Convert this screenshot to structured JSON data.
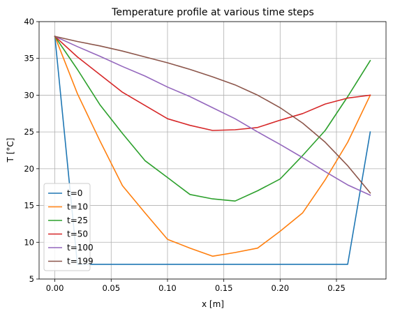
{
  "chart_data": {
    "type": "line",
    "title": "Temperature profile at various time steps",
    "xlabel": "x [m]",
    "ylabel": "T [°C]",
    "xlim": [
      -0.014,
      0.294
    ],
    "ylim": [
      5,
      40
    ],
    "xticks": [
      0.0,
      0.05,
      0.1,
      0.15,
      0.2,
      0.25
    ],
    "xtick_labels": [
      "0.00",
      "0.05",
      "0.10",
      "0.15",
      "0.20",
      "0.25"
    ],
    "yticks": [
      5,
      10,
      15,
      20,
      25,
      30,
      35,
      40
    ],
    "ytick_labels": [
      "5",
      "10",
      "15",
      "20",
      "25",
      "30",
      "35",
      "40"
    ],
    "grid": true,
    "legend_position": "lower-left",
    "x": [
      0.0,
      0.02,
      0.04,
      0.06,
      0.08,
      0.1,
      0.12,
      0.14,
      0.16,
      0.18,
      0.2,
      0.22,
      0.24,
      0.26,
      0.28
    ],
    "series": [
      {
        "name": "t=0",
        "color": "#1f77b4",
        "values": [
          38,
          7,
          7,
          7,
          7,
          7,
          7,
          7,
          7,
          7,
          7,
          7,
          7,
          7,
          25
        ]
      },
      {
        "name": "t=10",
        "color": "#ff7f0e",
        "values": [
          38,
          30.2,
          23.8,
          17.7,
          14.0,
          10.4,
          9.2,
          8.1,
          8.6,
          9.2,
          11.5,
          14.0,
          18.5,
          23.6,
          30.0
        ]
      },
      {
        "name": "t=25",
        "color": "#2ca02c",
        "values": [
          38,
          33.5,
          28.7,
          24.8,
          21.1,
          18.8,
          16.5,
          15.9,
          15.6,
          17.0,
          18.6,
          21.8,
          25.2,
          29.8,
          34.7
        ]
      },
      {
        "name": "t=50",
        "color": "#d62728",
        "values": [
          38,
          35.2,
          32.8,
          30.4,
          28.6,
          26.8,
          25.9,
          25.2,
          25.3,
          25.6,
          26.6,
          27.5,
          28.8,
          29.6,
          30.0
        ]
      },
      {
        "name": "t=100",
        "color": "#9467bd",
        "values": [
          38,
          36.6,
          35.3,
          33.9,
          32.6,
          31.1,
          29.8,
          28.3,
          26.8,
          25.0,
          23.3,
          21.5,
          19.6,
          17.8,
          16.4
        ]
      },
      {
        "name": "t=199",
        "color": "#8c564b",
        "values": [
          38,
          37.3,
          36.7,
          36.0,
          35.2,
          34.4,
          33.5,
          32.5,
          31.4,
          30.0,
          28.3,
          26.2,
          23.6,
          20.4,
          16.7
        ]
      }
    ]
  }
}
